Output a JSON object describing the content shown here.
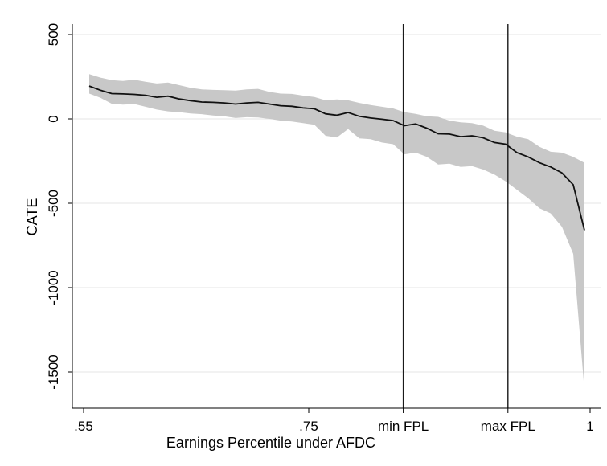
{
  "chart_data": {
    "type": "line",
    "title": "",
    "xlabel": "Earnings Percentile under AFDC",
    "ylabel": "CATE",
    "xlim": [
      0.55,
      1.0
    ],
    "ylim": [
      -1620,
      520
    ],
    "grid": true,
    "legend": "none",
    "x_ticks": [
      {
        "value": 0.55,
        "label": ".55"
      },
      {
        "value": 0.75,
        "label": ".75"
      },
      {
        "value": 0.834,
        "label": "min FPL"
      },
      {
        "value": 0.927,
        "label": "max FPL"
      },
      {
        "value": 1.0,
        "label": "1"
      }
    ],
    "y_ticks": [
      {
        "value": 500,
        "label": "500"
      },
      {
        "value": 0,
        "label": "0"
      },
      {
        "value": -500,
        "label": "-500"
      },
      {
        "value": -1000,
        "label": "-1000"
      },
      {
        "value": -1500,
        "label": "-1500"
      }
    ],
    "vlines": [
      {
        "value": 0.834,
        "label": "min FPL"
      },
      {
        "value": 0.927,
        "label": "max FPL"
      }
    ],
    "series": [
      {
        "kind": "estimate_with_ci",
        "x": [
          0.555,
          0.565,
          0.575,
          0.585,
          0.595,
          0.605,
          0.615,
          0.625,
          0.635,
          0.645,
          0.655,
          0.665,
          0.675,
          0.685,
          0.695,
          0.705,
          0.715,
          0.725,
          0.735,
          0.745,
          0.755,
          0.765,
          0.775,
          0.785,
          0.795,
          0.805,
          0.815,
          0.825,
          0.835,
          0.845,
          0.855,
          0.865,
          0.875,
          0.885,
          0.895,
          0.905,
          0.915,
          0.925,
          0.935,
          0.945,
          0.955,
          0.965,
          0.975,
          0.985,
          0.995
        ],
        "y": [
          195,
          170,
          150,
          148,
          145,
          140,
          128,
          135,
          118,
          108,
          100,
          98,
          95,
          88,
          95,
          98,
          88,
          78,
          75,
          65,
          60,
          30,
          22,
          38,
          15,
          5,
          -2,
          -10,
          -40,
          -30,
          -55,
          -88,
          -90,
          -105,
          -100,
          -112,
          -140,
          -150,
          -200,
          -225,
          -260,
          -285,
          -320,
          -390,
          -660
        ],
        "lower": [
          150,
          125,
          90,
          85,
          88,
          72,
          55,
          45,
          40,
          32,
          28,
          20,
          15,
          5,
          10,
          8,
          0,
          -10,
          -15,
          -25,
          -35,
          -100,
          -110,
          -60,
          -115,
          -120,
          -140,
          -150,
          -210,
          -200,
          -225,
          -270,
          -265,
          -285,
          -280,
          -300,
          -330,
          -370,
          -420,
          -470,
          -530,
          -560,
          -640,
          -800,
          -1610
        ],
        "upper": [
          265,
          245,
          230,
          225,
          232,
          220,
          210,
          215,
          200,
          185,
          175,
          172,
          170,
          168,
          175,
          178,
          160,
          150,
          148,
          138,
          130,
          110,
          115,
          110,
          95,
          82,
          72,
          62,
          40,
          30,
          15,
          12,
          -10,
          -20,
          -25,
          -40,
          -70,
          -80,
          -105,
          -120,
          -165,
          -195,
          -200,
          -225,
          -260
        ]
      }
    ]
  }
}
